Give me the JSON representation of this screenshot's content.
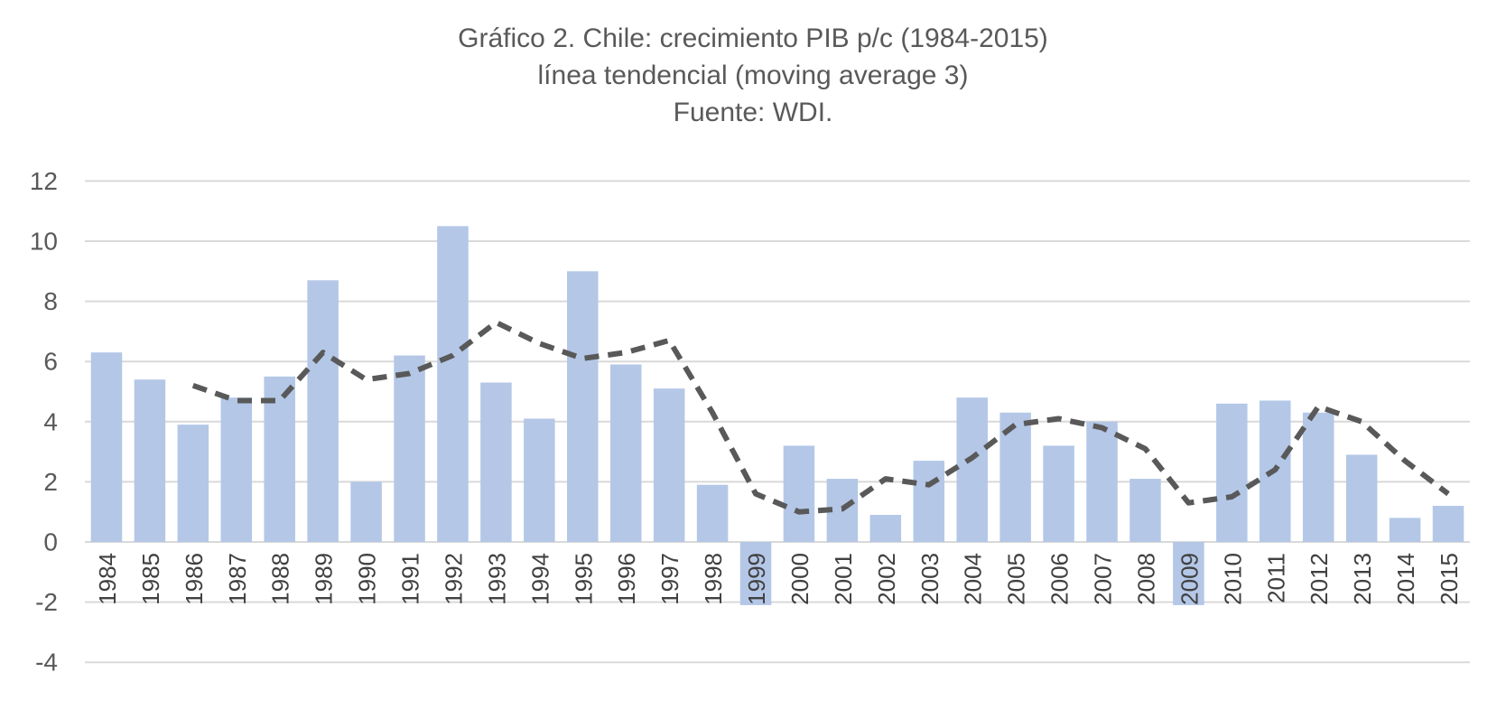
{
  "chart_data": {
    "type": "bar",
    "title": "Gráfico 2. Chile: crecimiento PIB p/c (1984-2015)",
    "subtitle": "línea tendencial (moving average 3)",
    "source": "Fuente: WDI.",
    "xlabel": "",
    "ylabel": "",
    "ylim": [
      -4,
      12
    ],
    "yticks": [
      -4,
      -2,
      0,
      2,
      4,
      6,
      8,
      10,
      12
    ],
    "grid": true,
    "legend": "none",
    "categories": [
      "1984",
      "1985",
      "1986",
      "1987",
      "1988",
      "1989",
      "1990",
      "1991",
      "1992",
      "1993",
      "1994",
      "1995",
      "1996",
      "1997",
      "1998",
      "1999",
      "2000",
      "2001",
      "2002",
      "2003",
      "2004",
      "2005",
      "2006",
      "2007",
      "2008",
      "2009",
      "2010",
      "2011",
      "2012",
      "2013",
      "2014",
      "2015"
    ],
    "series": [
      {
        "name": "crecimiento PIB p/c",
        "kind": "bar",
        "color": "#b4c7e7",
        "values": [
          6.3,
          5.4,
          3.9,
          4.8,
          5.5,
          8.7,
          2.0,
          6.2,
          10.5,
          5.3,
          4.1,
          9.0,
          5.9,
          5.1,
          1.9,
          -2.1,
          3.2,
          2.1,
          0.9,
          2.7,
          4.8,
          4.3,
          3.2,
          4.0,
          2.1,
          -2.1,
          4.6,
          4.7,
          4.3,
          2.9,
          0.8,
          1.2
        ]
      },
      {
        "name": "moving average 3",
        "kind": "line",
        "style": "dashed",
        "color": "#595959",
        "values": [
          null,
          null,
          5.2,
          4.7,
          4.7,
          6.3,
          5.4,
          5.6,
          6.2,
          7.3,
          6.6,
          6.1,
          6.3,
          6.7,
          4.3,
          1.6,
          1.0,
          1.1,
          2.1,
          1.9,
          2.8,
          3.9,
          4.1,
          3.8,
          3.1,
          1.3,
          1.5,
          2.4,
          4.5,
          4.0,
          2.7,
          1.6
        ]
      }
    ]
  }
}
